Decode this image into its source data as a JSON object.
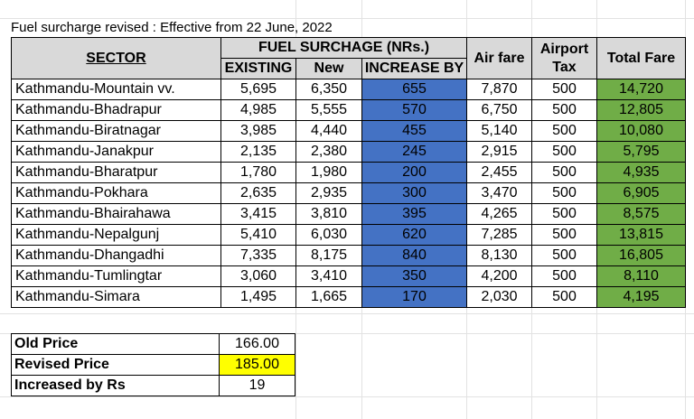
{
  "title": "Fuel surcharge revised : Effective from 22 June, 2022",
  "headers": {
    "sector": "SECTOR",
    "fuel_surcharge": "FUEL SURCHAGE (NRs.)",
    "existing": "EXISTING",
    "new": "New",
    "increase_by": "INCREASE BY",
    "air_fare": "Air fare",
    "airport_tax_line1": "Airport",
    "airport_tax_line2": "Tax",
    "total_fare": "Total Fare"
  },
  "rows": [
    {
      "sector": "Kathmandu-Mountain vv.",
      "existing": "5,695",
      "new": "6,350",
      "increase": "655",
      "air_fare": "7,870",
      "airport_tax": "500",
      "total": "14,720"
    },
    {
      "sector": "Kathmandu-Bhadrapur",
      "existing": "4,985",
      "new": "5,555",
      "increase": "570",
      "air_fare": "6,750",
      "airport_tax": "500",
      "total": "12,805"
    },
    {
      "sector": "Kathmandu-Biratnagar",
      "existing": "3,985",
      "new": "4,440",
      "increase": "455",
      "air_fare": "5,140",
      "airport_tax": "500",
      "total": "10,080"
    },
    {
      "sector": "Kathmandu-Janakpur",
      "existing": "2,135",
      "new": "2,380",
      "increase": "245",
      "air_fare": "2,915",
      "airport_tax": "500",
      "total": "5,795"
    },
    {
      "sector": "Kathmandu-Bharatpur",
      "existing": "1,780",
      "new": "1,980",
      "increase": "200",
      "air_fare": "2,455",
      "airport_tax": "500",
      "total": "4,935"
    },
    {
      "sector": "Kathmandu-Pokhara",
      "existing": "2,635",
      "new": "2,935",
      "increase": "300",
      "air_fare": "3,470",
      "airport_tax": "500",
      "total": "6,905"
    },
    {
      "sector": "Kathmandu-Bhairahawa",
      "existing": "3,415",
      "new": "3,810",
      "increase": "395",
      "air_fare": "4,265",
      "airport_tax": "500",
      "total": "8,575"
    },
    {
      "sector": "Kathmandu-Nepalgunj",
      "existing": "5,410",
      "new": "6,030",
      "increase": "620",
      "air_fare": "7,285",
      "airport_tax": "500",
      "total": "13,815"
    },
    {
      "sector": "Kathmandu-Dhangadhi",
      "existing": "7,335",
      "new": "8,175",
      "increase": "840",
      "air_fare": "8,130",
      "airport_tax": "500",
      "total": "16,805"
    },
    {
      "sector": "Kathmandu-Tumlingtar",
      "existing": "3,060",
      "new": "3,410",
      "increase": "350",
      "air_fare": "4,200",
      "airport_tax": "500",
      "total": "8,110"
    },
    {
      "sector": "Kathmandu-Simara",
      "existing": "1,495",
      "new": "1,665",
      "increase": "170",
      "air_fare": "2,030",
      "airport_tax": "500",
      "total": "4,195"
    }
  ],
  "prices": {
    "old_label": "Old Price",
    "old_value": "166.00",
    "revised_label": "Revised Price",
    "revised_value": "185.00",
    "increased_label": "Increased by Rs",
    "increased_value": "19"
  },
  "colors": {
    "increase_fill": "#4472c4",
    "total_fill": "#70ad47",
    "header_fill": "#d9d9d9",
    "revised_highlight": "#ffff00"
  }
}
